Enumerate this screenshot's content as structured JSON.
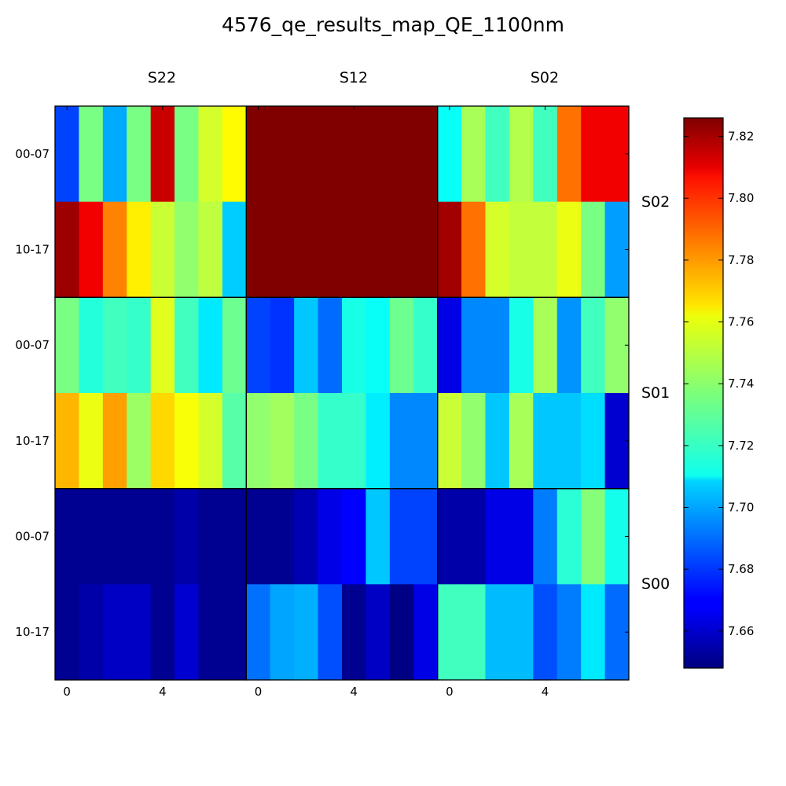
{
  "chart_data": {
    "type": "heatmap",
    "title": "4576_qe_results_map_QE_1100nm",
    "colormap": "jet",
    "vmin": 7.648,
    "vmax": 7.826,
    "colorbar": {
      "ticks": [
        7.66,
        7.68,
        7.7,
        7.72,
        7.74,
        7.76,
        7.78,
        7.8,
        7.82
      ],
      "tick_labels": [
        "7.66",
        "7.68",
        "7.70",
        "7.72",
        "7.74",
        "7.76",
        "7.78",
        "7.80",
        "7.82"
      ]
    },
    "panel_columns": [
      "S22",
      "S12",
      "S02"
    ],
    "panel_rows": [
      "S02",
      "S01",
      "S00"
    ],
    "y_tick_labels": [
      "00-07",
      "10-17"
    ],
    "x_tick_labels": [
      "0",
      "4"
    ],
    "panels": [
      [
        [
          [
            7.682,
            7.736,
            7.7,
            7.736,
            7.813,
            7.736,
            7.752,
            7.76
          ],
          [
            7.821,
            7.806,
            7.781,
            7.762,
            7.75,
            7.74,
            7.748,
            7.706
          ]
        ],
        [
          [
            7.826,
            7.826,
            7.826,
            7.826,
            7.826,
            7.826,
            7.826,
            7.826
          ],
          [
            7.826,
            7.826,
            7.826,
            7.826,
            7.826,
            7.826,
            7.826,
            7.826
          ]
        ],
        [
          [
            7.716,
            7.744,
            7.726,
            7.746,
            7.726,
            7.784,
            7.806,
            7.806
          ],
          [
            7.82,
            7.784,
            7.752,
            7.749,
            7.749,
            7.756,
            7.736,
            7.698
          ]
        ]
      ],
      [
        [
          [
            7.736,
            7.721,
            7.726,
            7.724,
            7.754,
            7.726,
            7.711,
            7.734
          ],
          [
            7.772,
            7.756,
            7.776,
            7.742,
            7.766,
            7.758,
            7.752,
            7.73
          ]
        ],
        [
          [
            7.682,
            7.679,
            7.705,
            7.689,
            7.719,
            7.716,
            7.734,
            7.724
          ],
          [
            7.74,
            7.743,
            7.736,
            7.724,
            7.724,
            7.712,
            7.694,
            7.694
          ]
        ],
        [
          [
            7.666,
            7.694,
            7.694,
            7.719,
            7.744,
            7.696,
            7.726,
            7.74
          ],
          [
            7.75,
            7.74,
            7.705,
            7.744,
            7.705,
            7.705,
            7.709,
            7.662
          ]
        ]
      ],
      [
        [
          [
            7.651,
            7.651,
            7.651,
            7.651,
            7.651,
            7.655,
            7.651,
            7.651
          ],
          [
            7.651,
            7.655,
            7.66,
            7.66,
            7.651,
            7.662,
            7.651,
            7.651
          ]
        ],
        [
          [
            7.651,
            7.651,
            7.657,
            7.666,
            7.67,
            7.705,
            7.682,
            7.682
          ],
          [
            7.69,
            7.699,
            7.701,
            7.684,
            7.651,
            7.66,
            7.649,
            7.666
          ]
        ],
        [
          [
            7.655,
            7.655,
            7.666,
            7.666,
            7.692,
            7.722,
            7.738,
            7.718
          ],
          [
            7.726,
            7.726,
            7.703,
            7.703,
            7.684,
            7.692,
            7.711,
            7.689
          ]
        ]
      ]
    ]
  }
}
